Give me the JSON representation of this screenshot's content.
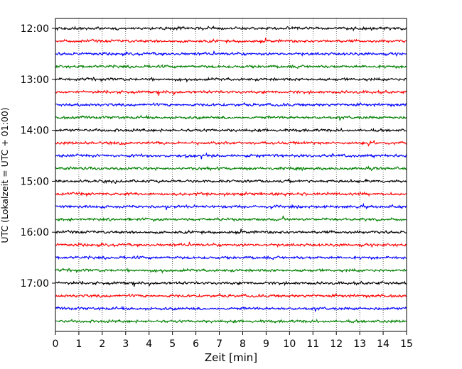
{
  "chart_data": {
    "type": "line",
    "title": "",
    "xlabel": "Zeit  [min]",
    "ylabel": "UTC (Lokalzeit = UTC + 01:00)",
    "xlim": [
      0,
      15
    ],
    "x_ticks": [
      0,
      1,
      2,
      3,
      4,
      5,
      6,
      7,
      8,
      9,
      10,
      11,
      12,
      13,
      14,
      15
    ],
    "x_tick_labels": [
      "0",
      "1",
      "2",
      "3",
      "4",
      "5",
      "6",
      "7",
      "8",
      "9",
      "10",
      "11",
      "12",
      "13",
      "14",
      "15"
    ],
    "grid": "vertical dotted at each minute",
    "y_tick_labels": [
      "12:00",
      "13:00",
      "14:00",
      "15:00",
      "16:00",
      "17:00"
    ],
    "rows_per_hour": 4,
    "trace_minutes": 15,
    "trace_colors": [
      "#000000",
      "#ff0000",
      "#0000ff",
      "#008000"
    ],
    "rows": [
      {
        "start": "12:00",
        "color": "#000000"
      },
      {
        "start": "12:15",
        "color": "#ff0000"
      },
      {
        "start": "12:30",
        "color": "#0000ff"
      },
      {
        "start": "12:45",
        "color": "#008000"
      },
      {
        "start": "13:00",
        "color": "#000000"
      },
      {
        "start": "13:15",
        "color": "#ff0000"
      },
      {
        "start": "13:30",
        "color": "#0000ff"
      },
      {
        "start": "13:45",
        "color": "#008000"
      },
      {
        "start": "14:00",
        "color": "#000000"
      },
      {
        "start": "14:15",
        "color": "#ff0000"
      },
      {
        "start": "14:30",
        "color": "#0000ff"
      },
      {
        "start": "14:45",
        "color": "#008000"
      },
      {
        "start": "15:00",
        "color": "#000000"
      },
      {
        "start": "15:15",
        "color": "#ff0000"
      },
      {
        "start": "15:30",
        "color": "#0000ff"
      },
      {
        "start": "15:45",
        "color": "#008000"
      },
      {
        "start": "16:00",
        "color": "#000000"
      },
      {
        "start": "16:15",
        "color": "#ff0000"
      },
      {
        "start": "16:30",
        "color": "#0000ff"
      },
      {
        "start": "16:45",
        "color": "#008000"
      },
      {
        "start": "17:00",
        "color": "#000000"
      },
      {
        "start": "17:15",
        "color": "#ff0000"
      },
      {
        "start": "17:30",
        "color": "#0000ff"
      },
      {
        "start": "17:45",
        "color": "#008000"
      }
    ]
  }
}
